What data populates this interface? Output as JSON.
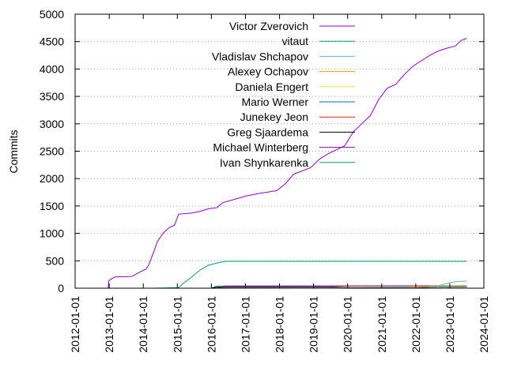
{
  "chart_data": {
    "type": "line",
    "title": "",
    "xlabel": "",
    "ylabel": "Commits",
    "ylim": [
      0,
      5000
    ],
    "xlim": [
      "2012-01-01",
      "2024-01-01"
    ],
    "grid": "horizontal dotted",
    "legend_position": "top-center",
    "y_ticks": [
      "0",
      "500",
      "1000",
      "1500",
      "2000",
      "2500",
      "3000",
      "3500",
      "4000",
      "4500",
      "5000"
    ],
    "x_ticks": [
      "2012-01-01",
      "2013-01-01",
      "2014-01-01",
      "2015-01-01",
      "2016-01-01",
      "2017-01-01",
      "2018-01-01",
      "2019-01-01",
      "2020-01-01",
      "2021-01-01",
      "2022-01-01",
      "2023-01-01",
      "2024-01-01"
    ],
    "series": [
      {
        "name": "Victor Zverovich",
        "color": "#9400d3",
        "points": [
          [
            "2012-12-20",
            0
          ],
          [
            "2012-12-28",
            140
          ],
          [
            "2013-03-01",
            205
          ],
          [
            "2013-09-01",
            215
          ],
          [
            "2013-12-01",
            300
          ],
          [
            "2014-02-01",
            350
          ],
          [
            "2014-03-01",
            430
          ],
          [
            "2014-05-01",
            700
          ],
          [
            "2014-06-01",
            850
          ],
          [
            "2014-08-01",
            1000
          ],
          [
            "2014-10-01",
            1100
          ],
          [
            "2014-12-01",
            1150
          ],
          [
            "2015-01-15",
            1350
          ],
          [
            "2015-06-01",
            1370
          ],
          [
            "2015-09-01",
            1400
          ],
          [
            "2015-12-01",
            1450
          ],
          [
            "2016-03-01",
            1470
          ],
          [
            "2016-05-01",
            1560
          ],
          [
            "2016-09-01",
            1620
          ],
          [
            "2017-01-01",
            1680
          ],
          [
            "2017-06-01",
            1730
          ],
          [
            "2017-12-01",
            1780
          ],
          [
            "2018-03-01",
            1900
          ],
          [
            "2018-06-01",
            2080
          ],
          [
            "2018-12-01",
            2200
          ],
          [
            "2019-03-01",
            2350
          ],
          [
            "2019-06-01",
            2450
          ],
          [
            "2019-12-01",
            2600
          ],
          [
            "2020-03-01",
            2850
          ],
          [
            "2020-06-01",
            3000
          ],
          [
            "2020-09-01",
            3150
          ],
          [
            "2020-12-01",
            3450
          ],
          [
            "2021-03-01",
            3650
          ],
          [
            "2021-06-01",
            3720
          ],
          [
            "2021-09-01",
            3900
          ],
          [
            "2021-12-01",
            4050
          ],
          [
            "2022-03-01",
            4150
          ],
          [
            "2022-06-01",
            4250
          ],
          [
            "2022-09-01",
            4330
          ],
          [
            "2022-12-01",
            4380
          ],
          [
            "2023-03-01",
            4420
          ],
          [
            "2023-05-01",
            4520
          ],
          [
            "2023-07-01",
            4560
          ]
        ]
      },
      {
        "name": "vitaut",
        "color": "#009e73",
        "points": [
          [
            "2014-05-01",
            0
          ],
          [
            "2015-01-15",
            10
          ],
          [
            "2015-03-01",
            80
          ],
          [
            "2015-06-01",
            200
          ],
          [
            "2015-09-01",
            330
          ],
          [
            "2015-12-01",
            420
          ],
          [
            "2016-03-01",
            460
          ],
          [
            "2016-06-01",
            490
          ],
          [
            "2023-07-01",
            490
          ]
        ]
      },
      {
        "name": "Vladislav Shchapov",
        "color": "#56b4e9",
        "points": [
          [
            "2022-08-01",
            0
          ],
          [
            "2022-10-01",
            60
          ],
          [
            "2023-01-01",
            100
          ],
          [
            "2023-03-01",
            120
          ],
          [
            "2023-07-01",
            130
          ]
        ]
      },
      {
        "name": "Alexey Ochapov",
        "color": "#e69f00",
        "points": [
          [
            "2021-10-01",
            0
          ],
          [
            "2022-01-01",
            20
          ],
          [
            "2022-06-01",
            40
          ],
          [
            "2023-07-01",
            45
          ]
        ]
      },
      {
        "name": "Daniela Engert",
        "color": "#f0e442",
        "points": [
          [
            "2019-06-01",
            0
          ],
          [
            "2020-01-01",
            20
          ],
          [
            "2023-07-01",
            40
          ]
        ]
      },
      {
        "name": "Mario Werner",
        "color": "#0072b2",
        "points": [
          [
            "2019-06-01",
            0
          ],
          [
            "2020-01-01",
            10
          ],
          [
            "2023-07-01",
            25
          ]
        ]
      },
      {
        "name": "Junekey Jeon",
        "color": "#e51e10",
        "points": [
          [
            "2022-01-01",
            0
          ],
          [
            "2022-06-01",
            20
          ],
          [
            "2023-07-01",
            30
          ]
        ]
      },
      {
        "name": "Greg Sjaardema",
        "color": "#000000",
        "points": [
          [
            "2016-01-01",
            0
          ],
          [
            "2016-03-01",
            20
          ],
          [
            "2023-07-01",
            25
          ]
        ]
      },
      {
        "name": "Michael Winterberg",
        "color": "#9400d3",
        "points": [
          [
            "2016-03-01",
            0
          ],
          [
            "2016-06-01",
            40
          ],
          [
            "2023-07-01",
            45
          ]
        ]
      },
      {
        "name": "Ivan Shynkarenka",
        "color": "#009e73",
        "points": [
          [
            "2016-01-01",
            0
          ],
          [
            "2016-03-01",
            40
          ],
          [
            "2023-07-01",
            45
          ]
        ]
      }
    ]
  }
}
